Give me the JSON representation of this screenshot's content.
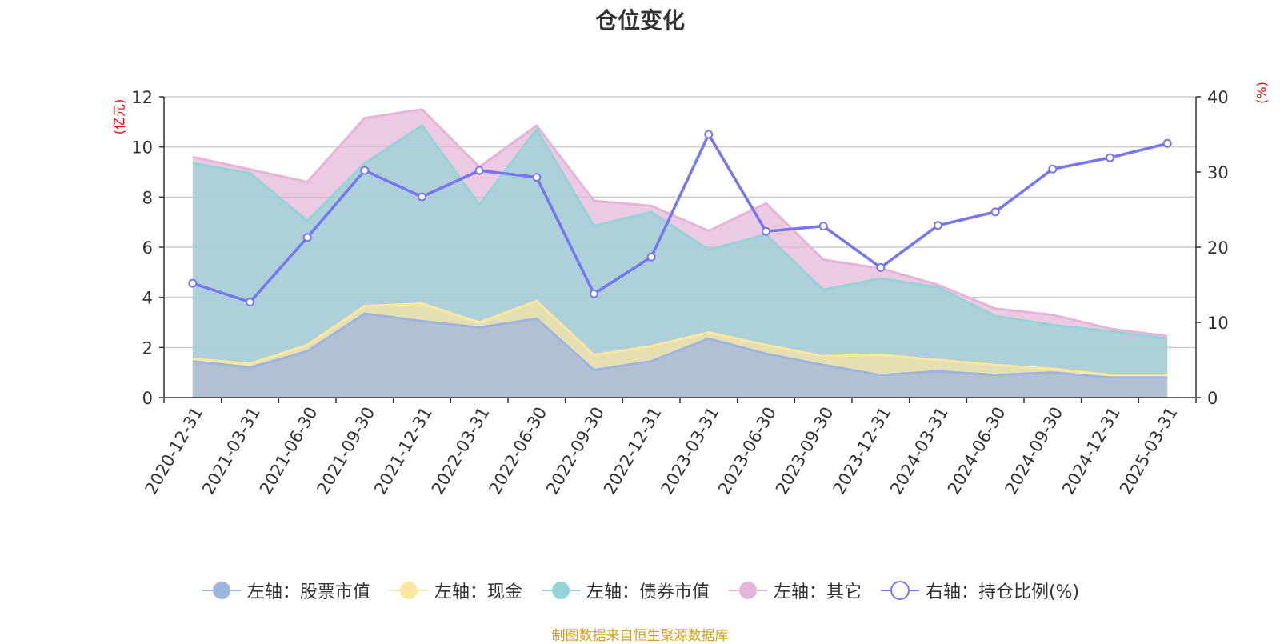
{
  "title": "仓位变化",
  "source_note": "制图数据来自恒生聚源数据库",
  "colors": {
    "stock": "#9db4e0",
    "cash": "#fbe7a0",
    "bond": "#93d4d4",
    "other": "#e6b4d8",
    "ratio": "#7476f2",
    "axis_unit": "#ff0000",
    "source": "#d4a017"
  },
  "chart_data": {
    "type": "area",
    "title": "仓位变化",
    "x": [
      "2020-12-31",
      "2021-03-31",
      "2021-06-30",
      "2021-09-30",
      "2021-12-31",
      "2022-03-31",
      "2022-06-30",
      "2022-09-30",
      "2022-12-31",
      "2023-03-31",
      "2023-06-30",
      "2023-09-30",
      "2023-12-31",
      "2024-03-31",
      "2024-06-30",
      "2024-09-30",
      "2024-12-31",
      "2025-03-31"
    ],
    "y_left_unit": "(亿元)",
    "y_right_unit": "(%)",
    "y_left_range": [
      0,
      12
    ],
    "y_left_ticks": [
      0,
      2,
      4,
      6,
      8,
      10,
      12
    ],
    "y_right_range": [
      0,
      40
    ],
    "y_right_ticks": [
      0,
      10,
      20,
      30,
      40
    ],
    "grid": true,
    "legend_position": "bottom",
    "series": [
      {
        "name": "左轴：股票市值",
        "key": "stock",
        "axis": "left",
        "stacked": true,
        "values": [
          1.45,
          1.2,
          1.85,
          3.35,
          3.05,
          2.8,
          3.15,
          1.1,
          1.45,
          2.35,
          1.75,
          1.3,
          0.9,
          1.05,
          0.9,
          1.0,
          0.8,
          0.8
        ]
      },
      {
        "name": "左轴：现金",
        "key": "cash",
        "axis": "left",
        "stacked": true,
        "values": [
          0.1,
          0.15,
          0.25,
          0.3,
          0.7,
          0.2,
          0.7,
          0.6,
          0.6,
          0.25,
          0.35,
          0.35,
          0.8,
          0.45,
          0.4,
          0.15,
          0.1,
          0.1
        ]
      },
      {
        "name": "左轴：债券市值",
        "key": "bond",
        "axis": "left",
        "stacked": true,
        "values": [
          7.8,
          7.6,
          4.95,
          5.7,
          7.1,
          4.7,
          6.85,
          5.15,
          5.35,
          3.3,
          4.4,
          2.65,
          3.05,
          2.9,
          1.95,
          1.75,
          1.75,
          1.45
        ]
      },
      {
        "name": "左轴：其它",
        "key": "other",
        "axis": "left",
        "stacked": true,
        "values": [
          0.25,
          0.15,
          1.55,
          1.8,
          0.65,
          1.5,
          0.15,
          1.0,
          0.25,
          0.75,
          1.25,
          1.2,
          0.4,
          0.1,
          0.3,
          0.4,
          0.1,
          0.1
        ]
      },
      {
        "name": "右轴：持仓比例(%)",
        "key": "ratio",
        "axis": "right",
        "stacked": false,
        "values": [
          15.2,
          12.7,
          21.3,
          30.2,
          26.7,
          30.2,
          29.3,
          13.8,
          18.7,
          35.0,
          22.1,
          22.8,
          17.3,
          22.9,
          24.7,
          30.4,
          31.9,
          33.8
        ]
      }
    ]
  }
}
